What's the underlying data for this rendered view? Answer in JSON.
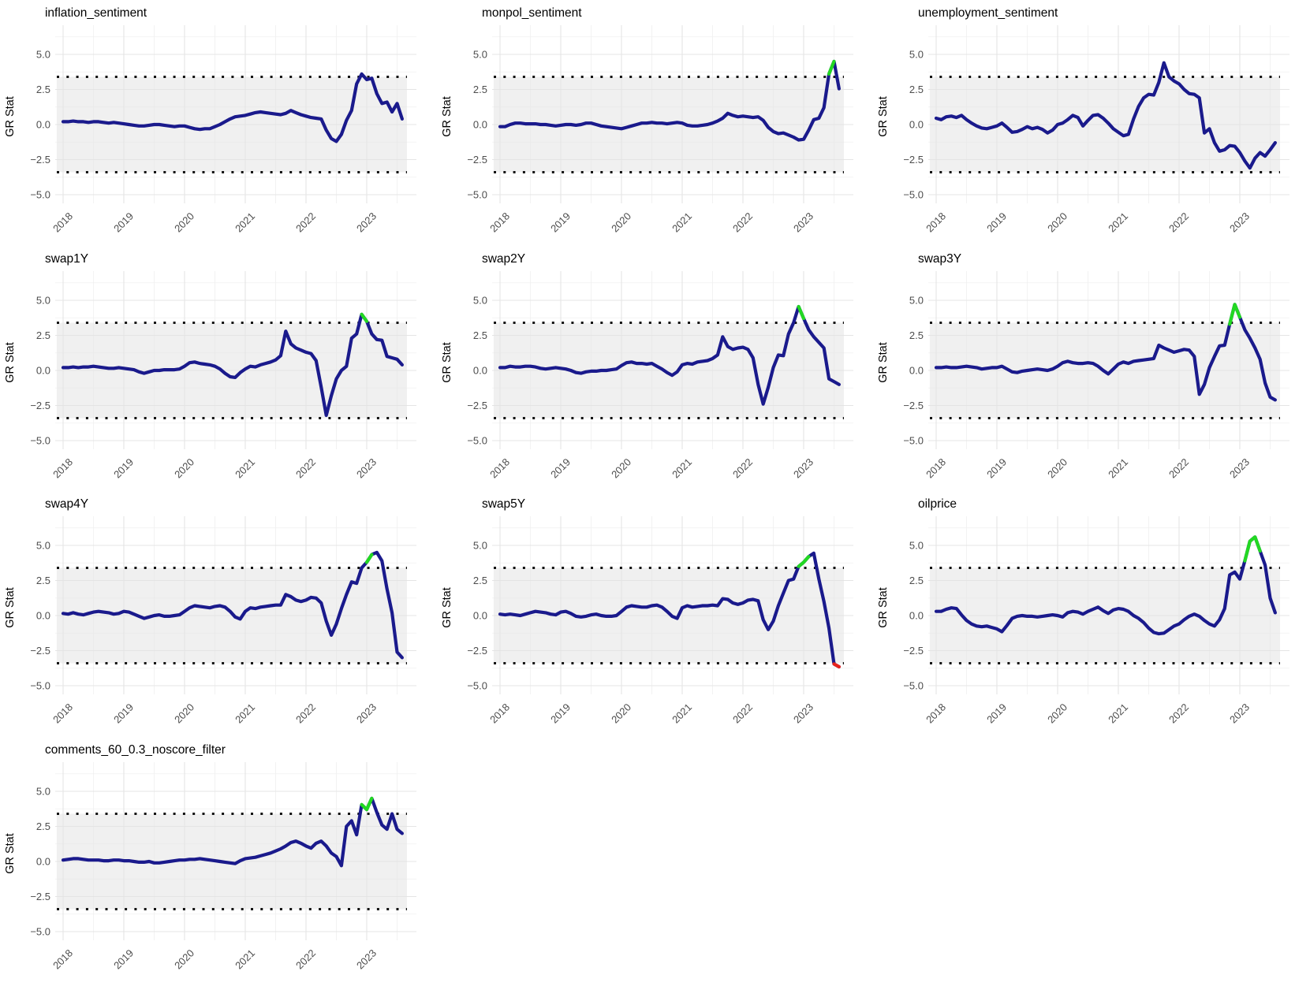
{
  "figure": {
    "ylabel": "GR Stat",
    "y_tick_labels": [
      "5.0",
      "2.5",
      "0.0",
      "−2.5",
      "−5.0"
    ],
    "y_tick_values": [
      5.0,
      2.5,
      0.0,
      -2.5,
      -5.0
    ],
    "y_minor_values": [
      6.25,
      3.75,
      1.25,
      -1.25,
      -3.75
    ],
    "x_tick_labels": [
      "2018",
      "2019",
      "2020",
      "2021",
      "2022",
      "2023"
    ],
    "x_tick_years": [
      2018,
      2019,
      2020,
      2021,
      2022,
      2023
    ],
    "threshold_upper": 3.4,
    "threshold_lower": -3.4,
    "colors": {
      "line": "#1a1a8c",
      "green": "#22d822",
      "red": "#e8231c",
      "band": "#e3e3e3",
      "grid_major": "#e5e5e5",
      "grid_minor": "#f0f0f0",
      "threshold_dotted": "#111111",
      "tick_text": "#4d4d4d",
      "title_text": "#000000"
    }
  },
  "chart_data": [
    {
      "type": "line",
      "title": "inflation_sentiment",
      "ylabel": "GR Stat",
      "x_start": 2018,
      "x_step_months": 1,
      "xlim": [
        2018,
        2023.6
      ],
      "ylim": [
        -5.5,
        6.6
      ],
      "band": [
        -3.4,
        3.4
      ],
      "grid": true,
      "values": [
        0.2,
        0.2,
        0.25,
        0.2,
        0.2,
        0.15,
        0.2,
        0.2,
        0.15,
        0.1,
        0.15,
        0.1,
        0.05,
        0.0,
        -0.05,
        -0.1,
        -0.1,
        -0.05,
        0.0,
        0.0,
        -0.05,
        -0.1,
        -0.15,
        -0.1,
        -0.1,
        -0.2,
        -0.3,
        -0.35,
        -0.3,
        -0.3,
        -0.15,
        0.0,
        0.2,
        0.4,
        0.55,
        0.6,
        0.65,
        0.75,
        0.85,
        0.9,
        0.85,
        0.8,
        0.75,
        0.7,
        0.8,
        1.0,
        0.85,
        0.7,
        0.6,
        0.5,
        0.45,
        0.4,
        -0.4,
        -1.0,
        -1.2,
        -0.7,
        0.3,
        1.0,
        2.9,
        3.6,
        3.2,
        3.3,
        2.2,
        1.5,
        1.6,
        0.9,
        1.5,
        0.4
      ],
      "highlights": []
    },
    {
      "type": "line",
      "title": "monpol_sentiment",
      "ylabel": "GR Stat",
      "x_start": 2018,
      "x_step_months": 1,
      "xlim": [
        2018,
        2023.6
      ],
      "ylim": [
        -5.5,
        6.6
      ],
      "band": [
        -3.4,
        3.4
      ],
      "grid": true,
      "values": [
        -0.15,
        -0.15,
        0.0,
        0.1,
        0.1,
        0.05,
        0.05,
        0.05,
        0.0,
        0.0,
        -0.05,
        -0.1,
        -0.05,
        0.0,
        0.0,
        -0.05,
        0.0,
        0.1,
        0.1,
        0.0,
        -0.1,
        -0.15,
        -0.2,
        -0.25,
        -0.3,
        -0.2,
        -0.1,
        0.0,
        0.1,
        0.1,
        0.15,
        0.1,
        0.1,
        0.05,
        0.1,
        0.15,
        0.1,
        -0.05,
        -0.1,
        -0.1,
        -0.05,
        0.0,
        0.1,
        0.25,
        0.45,
        0.8,
        0.65,
        0.55,
        0.6,
        0.55,
        0.5,
        0.55,
        0.3,
        -0.2,
        -0.5,
        -0.65,
        -0.6,
        -0.75,
        -0.9,
        -1.1,
        -1.05,
        -0.4,
        0.35,
        0.45,
        1.2,
        3.6,
        4.5,
        2.55
      ],
      "highlights": [
        {
          "from": 65,
          "to": 66,
          "color": "green"
        }
      ]
    },
    {
      "type": "line",
      "title": "unemployment_sentiment",
      "ylabel": "GR Stat",
      "x_start": 2018,
      "x_step_months": 1,
      "xlim": [
        2018,
        2023.6
      ],
      "ylim": [
        -5.5,
        6.6
      ],
      "band": [
        -3.4,
        3.4
      ],
      "grid": true,
      "values": [
        0.45,
        0.35,
        0.55,
        0.6,
        0.5,
        0.65,
        0.35,
        0.1,
        -0.1,
        -0.25,
        -0.3,
        -0.2,
        -0.1,
        0.1,
        -0.2,
        -0.55,
        -0.5,
        -0.35,
        -0.15,
        -0.3,
        -0.2,
        -0.35,
        -0.6,
        -0.4,
        0.0,
        0.1,
        0.35,
        0.65,
        0.5,
        -0.1,
        0.3,
        0.65,
        0.7,
        0.45,
        0.1,
        -0.3,
        -0.55,
        -0.8,
        -0.7,
        0.4,
        1.3,
        1.9,
        2.15,
        2.1,
        3.0,
        4.4,
        3.4,
        3.1,
        2.9,
        2.5,
        2.2,
        2.15,
        1.9,
        -0.6,
        -0.3,
        -1.3,
        -1.9,
        -1.8,
        -1.5,
        -1.55,
        -2.0,
        -2.6,
        -3.1,
        -2.4,
        -2.0,
        -2.25,
        -1.8,
        -1.3
      ],
      "highlights": []
    },
    {
      "type": "line",
      "title": "swap1Y",
      "ylabel": "GR Stat",
      "x_start": 2018,
      "x_step_months": 1,
      "xlim": [
        2018,
        2023.6
      ],
      "ylim": [
        -5.5,
        6.6
      ],
      "band": [
        -3.4,
        3.4
      ],
      "grid": true,
      "values": [
        0.2,
        0.2,
        0.25,
        0.2,
        0.25,
        0.25,
        0.3,
        0.25,
        0.2,
        0.15,
        0.15,
        0.2,
        0.15,
        0.1,
        0.05,
        -0.1,
        -0.2,
        -0.1,
        0.0,
        0.0,
        0.05,
        0.05,
        0.05,
        0.1,
        0.3,
        0.55,
        0.6,
        0.5,
        0.45,
        0.4,
        0.3,
        0.1,
        -0.2,
        -0.45,
        -0.5,
        -0.15,
        0.1,
        0.3,
        0.25,
        0.4,
        0.5,
        0.6,
        0.75,
        1.05,
        2.8,
        1.9,
        1.6,
        1.45,
        1.3,
        1.2,
        0.7,
        -1.2,
        -3.2,
        -1.8,
        -0.6,
        0.0,
        0.3,
        2.3,
        2.6,
        4.0,
        3.5,
        2.6,
        2.2,
        2.15,
        1.0,
        0.9,
        0.8,
        0.4
      ],
      "highlights": [
        {
          "from": 59,
          "to": 60,
          "color": "green"
        }
      ]
    },
    {
      "type": "line",
      "title": "swap2Y",
      "ylabel": "GR Stat",
      "x_start": 2018,
      "x_step_months": 1,
      "xlim": [
        2018,
        2023.6
      ],
      "ylim": [
        -5.5,
        6.6
      ],
      "band": [
        -3.4,
        3.4
      ],
      "grid": true,
      "values": [
        0.2,
        0.2,
        0.3,
        0.25,
        0.25,
        0.3,
        0.3,
        0.25,
        0.15,
        0.1,
        0.15,
        0.2,
        0.15,
        0.1,
        0.0,
        -0.15,
        -0.2,
        -0.1,
        -0.05,
        -0.05,
        0.0,
        0.0,
        0.05,
        0.1,
        0.35,
        0.55,
        0.6,
        0.5,
        0.5,
        0.45,
        0.5,
        0.3,
        0.1,
        -0.15,
        -0.35,
        -0.1,
        0.4,
        0.5,
        0.45,
        0.6,
        0.65,
        0.7,
        0.85,
        1.1,
        2.4,
        1.7,
        1.5,
        1.6,
        1.65,
        1.5,
        0.9,
        -1.0,
        -2.4,
        -1.2,
        0.2,
        1.1,
        1.05,
        2.6,
        3.4,
        4.55,
        3.7,
        2.9,
        2.4,
        2.0,
        1.6,
        -0.6,
        -0.8,
        -1.0
      ],
      "highlights": [
        {
          "from": 59,
          "to": 60,
          "color": "green"
        }
      ]
    },
    {
      "type": "line",
      "title": "swap3Y",
      "ylabel": "GR Stat",
      "x_start": 2018,
      "x_step_months": 1,
      "xlim": [
        2018,
        2023.6
      ],
      "ylim": [
        -5.5,
        6.6
      ],
      "band": [
        -3.4,
        3.4
      ],
      "grid": true,
      "values": [
        0.2,
        0.2,
        0.25,
        0.2,
        0.2,
        0.25,
        0.3,
        0.25,
        0.2,
        0.1,
        0.15,
        0.2,
        0.2,
        0.3,
        0.1,
        -0.1,
        -0.15,
        -0.05,
        0.0,
        0.05,
        0.1,
        0.05,
        0.0,
        0.1,
        0.3,
        0.55,
        0.65,
        0.55,
        0.5,
        0.5,
        0.55,
        0.5,
        0.3,
        0.0,
        -0.25,
        0.1,
        0.45,
        0.6,
        0.5,
        0.65,
        0.7,
        0.75,
        0.8,
        0.85,
        1.8,
        1.6,
        1.45,
        1.3,
        1.4,
        1.5,
        1.45,
        1.0,
        -1.7,
        -1.0,
        0.2,
        1.0,
        1.75,
        1.8,
        3.3,
        4.7,
        3.8,
        2.9,
        2.3,
        1.6,
        0.8,
        -0.9,
        -1.9,
        -2.1
      ],
      "highlights": [
        {
          "from": 58,
          "to": 60,
          "color": "green"
        }
      ]
    },
    {
      "type": "line",
      "title": "swap4Y",
      "ylabel": "GR Stat",
      "x_start": 2018,
      "x_step_months": 1,
      "xlim": [
        2018,
        2023.6
      ],
      "ylim": [
        -5.5,
        6.6
      ],
      "band": [
        -3.4,
        3.4
      ],
      "grid": true,
      "values": [
        0.15,
        0.1,
        0.2,
        0.1,
        0.05,
        0.15,
        0.25,
        0.3,
        0.25,
        0.2,
        0.1,
        0.15,
        0.3,
        0.25,
        0.1,
        -0.05,
        -0.2,
        -0.1,
        0.0,
        0.05,
        -0.05,
        -0.05,
        0.0,
        0.05,
        0.3,
        0.55,
        0.7,
        0.65,
        0.6,
        0.55,
        0.65,
        0.7,
        0.6,
        0.3,
        -0.1,
        -0.25,
        0.3,
        0.55,
        0.5,
        0.6,
        0.65,
        0.7,
        0.75,
        0.75,
        1.5,
        1.35,
        1.1,
        1.0,
        1.1,
        1.3,
        1.25,
        0.9,
        -0.4,
        -1.4,
        -0.6,
        0.5,
        1.5,
        2.4,
        2.3,
        3.4,
        3.8,
        4.35,
        4.5,
        3.9,
        1.9,
        0.2,
        -2.6,
        -3.0
      ],
      "highlights": [
        {
          "from": 60,
          "to": 61,
          "color": "green"
        }
      ]
    },
    {
      "type": "line",
      "title": "swap5Y",
      "ylabel": "GR Stat",
      "x_start": 2018,
      "x_step_months": 1,
      "xlim": [
        2018,
        2023.6
      ],
      "ylim": [
        -5.5,
        6.6
      ],
      "band": [
        -3.4,
        3.4
      ],
      "grid": true,
      "values": [
        0.1,
        0.05,
        0.1,
        0.05,
        0.0,
        0.1,
        0.2,
        0.3,
        0.25,
        0.2,
        0.1,
        0.05,
        0.25,
        0.3,
        0.15,
        -0.05,
        -0.1,
        -0.05,
        0.05,
        0.1,
        0.0,
        -0.05,
        -0.05,
        0.0,
        0.3,
        0.6,
        0.7,
        0.65,
        0.6,
        0.6,
        0.7,
        0.75,
        0.6,
        0.3,
        -0.05,
        -0.2,
        0.55,
        0.7,
        0.6,
        0.65,
        0.7,
        0.7,
        0.75,
        0.7,
        1.2,
        1.15,
        0.9,
        0.8,
        0.9,
        1.1,
        1.15,
        1.05,
        -0.3,
        -1.0,
        -0.4,
        0.7,
        1.6,
        2.5,
        2.6,
        3.5,
        3.8,
        4.2,
        4.45,
        2.6,
        1.0,
        -0.9,
        -3.45,
        -3.65
      ],
      "highlights": [
        {
          "from": 59,
          "to": 61,
          "color": "green"
        },
        {
          "from": 66,
          "to": 67,
          "color": "red"
        }
      ]
    },
    {
      "type": "line",
      "title": "oilprice",
      "ylabel": "GR Stat",
      "x_start": 2018,
      "x_step_months": 1,
      "xlim": [
        2018,
        2023.6
      ],
      "ylim": [
        -5.5,
        6.6
      ],
      "band": [
        -3.4,
        3.4
      ],
      "grid": true,
      "values": [
        0.3,
        0.3,
        0.45,
        0.55,
        0.5,
        0.05,
        -0.35,
        -0.6,
        -0.75,
        -0.8,
        -0.75,
        -0.85,
        -0.95,
        -1.15,
        -0.7,
        -0.2,
        -0.05,
        0.0,
        -0.05,
        -0.05,
        -0.1,
        -0.05,
        0.0,
        0.05,
        0.0,
        -0.1,
        0.2,
        0.3,
        0.25,
        0.1,
        0.3,
        0.45,
        0.6,
        0.35,
        0.15,
        0.4,
        0.5,
        0.45,
        0.3,
        0.0,
        -0.2,
        -0.5,
        -0.9,
        -1.2,
        -1.3,
        -1.25,
        -1.0,
        -0.75,
        -0.6,
        -0.3,
        -0.05,
        0.1,
        -0.05,
        -0.35,
        -0.6,
        -0.75,
        -0.3,
        0.5,
        2.9,
        3.1,
        2.6,
        3.9,
        5.3,
        5.6,
        4.6,
        3.6,
        1.25,
        0.2
      ],
      "highlights": [
        {
          "from": 61,
          "to": 64,
          "color": "green"
        }
      ]
    },
    {
      "type": "line",
      "title": "comments_60_0.3_noscore_filter",
      "ylabel": "GR Stat",
      "x_start": 2018,
      "x_step_months": 1,
      "xlim": [
        2018,
        2023.6
      ],
      "ylim": [
        -5.5,
        6.6
      ],
      "band": [
        -3.4,
        3.4
      ],
      "grid": true,
      "values": [
        0.1,
        0.15,
        0.2,
        0.2,
        0.15,
        0.1,
        0.1,
        0.1,
        0.05,
        0.05,
        0.1,
        0.1,
        0.05,
        0.05,
        0.0,
        -0.05,
        -0.05,
        0.0,
        -0.1,
        -0.1,
        -0.05,
        0.0,
        0.05,
        0.1,
        0.1,
        0.15,
        0.15,
        0.2,
        0.15,
        0.1,
        0.05,
        0.0,
        -0.05,
        -0.1,
        -0.15,
        0.05,
        0.2,
        0.25,
        0.3,
        0.4,
        0.5,
        0.6,
        0.75,
        0.9,
        1.1,
        1.35,
        1.45,
        1.3,
        1.1,
        0.95,
        1.3,
        1.45,
        1.1,
        0.6,
        0.35,
        -0.3,
        2.5,
        2.9,
        1.9,
        4.05,
        3.7,
        4.5,
        3.5,
        2.6,
        2.3,
        3.4,
        2.3,
        2.0
      ],
      "highlights": [
        {
          "from": 59,
          "to": 61,
          "color": "green"
        }
      ]
    }
  ]
}
